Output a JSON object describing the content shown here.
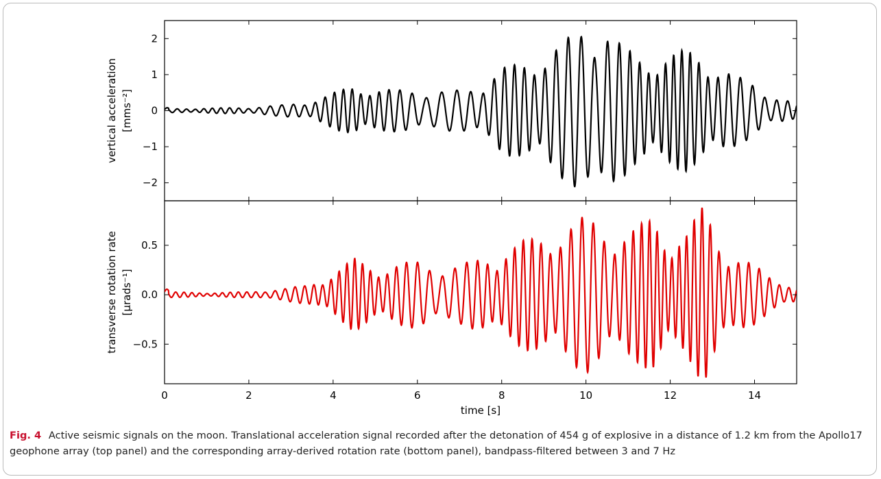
{
  "caption": {
    "label": "Fig. 4",
    "text": "Active seismic signals on the moon. Translational acceleration signal recorded after the detonation of 454 g of explosive in a distance of 1.2 km from the Apollo17 geophone array (top panel) and the corresponding array-derived rotation rate (bottom panel), bandpass-filtered between 3 and 7 Hz"
  },
  "chart_data": [
    {
      "type": "line",
      "panel": "top",
      "ylabel_line1": "vertical acceleration",
      "ylabel_line2": "[mms⁻²]",
      "xlim": [
        0,
        15
      ],
      "ylim": [
        -2.5,
        2.5
      ],
      "xticks": [
        0,
        2,
        4,
        6,
        8,
        10,
        12,
        14
      ],
      "yticks": [
        -2,
        -1,
        0,
        1,
        2
      ],
      "ytick_labels": [
        "−2",
        "−1",
        "0",
        "1",
        "2"
      ],
      "grid": false,
      "color": "#000000",
      "envelope": {
        "t": [
          0,
          1,
          2,
          2.8,
          3.4,
          3.9,
          4.5,
          5.0,
          5.5,
          6.0,
          6.5,
          7.0,
          7.5,
          8.0,
          8.5,
          9.0,
          9.5,
          10.0,
          10.4,
          10.8,
          11.2,
          11.6,
          12.0,
          12.4,
          12.8,
          13.2,
          13.6,
          14.0,
          14.4,
          15.0
        ],
        "amp": [
          0.05,
          0.07,
          0.09,
          0.16,
          0.25,
          0.45,
          0.72,
          0.62,
          0.58,
          0.6,
          0.55,
          0.58,
          0.75,
          1.2,
          1.35,
          1.65,
          1.95,
          2.45,
          2.55,
          1.9,
          1.55,
          1.55,
          1.6,
          1.7,
          1.55,
          1.25,
          0.95,
          0.75,
          0.45,
          0.2
        ]
      }
    },
    {
      "type": "line",
      "panel": "bottom",
      "ylabel_line1": "transverse rotation rate",
      "ylabel_line2": "[μrads⁻¹]",
      "xlabel": "time [s]",
      "xlim": [
        0,
        15
      ],
      "ylim": [
        -0.9,
        0.95
      ],
      "xticks": [
        0,
        2,
        4,
        6,
        8,
        10,
        12,
        14
      ],
      "yticks": [
        -0.5,
        0.0,
        0.5
      ],
      "ytick_labels": [
        "−0.5",
        "0.0",
        "0.5"
      ],
      "grid": false,
      "color": "#e00000",
      "envelope": {
        "t": [
          0,
          1,
          2,
          2.8,
          3.4,
          3.9,
          4.5,
          5.0,
          5.5,
          6.0,
          6.5,
          7.0,
          7.5,
          8.0,
          8.5,
          9.0,
          9.5,
          10.0,
          10.4,
          10.8,
          11.2,
          11.6,
          12.0,
          12.4,
          12.8,
          13.2,
          13.6,
          14.0,
          14.4,
          15.0
        ],
        "amp": [
          0.03,
          0.02,
          0.03,
          0.06,
          0.1,
          0.2,
          0.37,
          0.28,
          0.32,
          0.34,
          0.3,
          0.3,
          0.38,
          0.45,
          0.55,
          0.62,
          0.7,
          0.8,
          0.75,
          0.62,
          0.68,
          0.82,
          0.6,
          0.65,
          0.92,
          0.55,
          0.4,
          0.3,
          0.18,
          0.08
        ]
      }
    }
  ]
}
